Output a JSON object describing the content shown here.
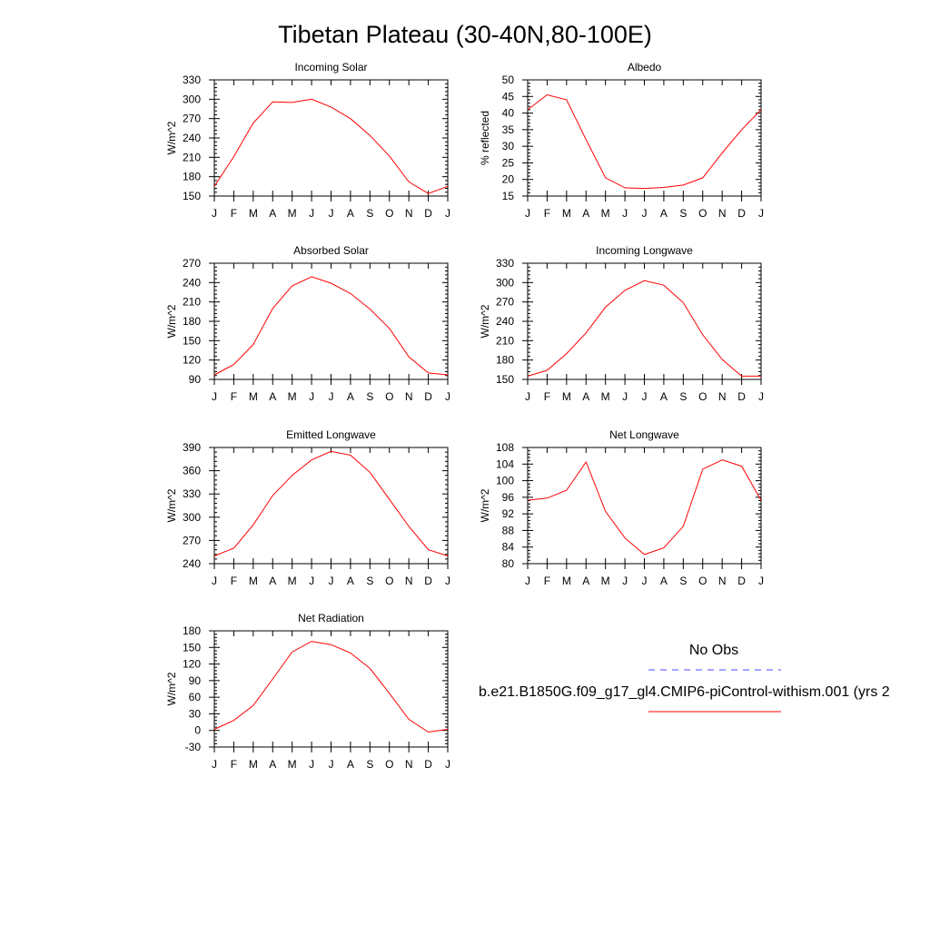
{
  "title": "Tibetan Plateau (30-40N,80-100E)",
  "months": [
    "J",
    "F",
    "M",
    "A",
    "M",
    "J",
    "J",
    "A",
    "S",
    "O",
    "N",
    "D",
    "J"
  ],
  "line_color": "#ff0000",
  "obs_color": "#4a4aff",
  "legend": {
    "obs_label": "No Obs",
    "model_label": "b.e21.B1850G.f09_g17_gl4.CMIP6-piControl-withism.001 (yrs 2"
  },
  "chart_data": [
    {
      "type": "line",
      "title": "Incoming Solar",
      "ylabel": "W/m^2",
      "ylim": [
        150,
        330
      ],
      "yticks": [
        150,
        180,
        210,
        240,
        270,
        300,
        330
      ],
      "x": [
        "J",
        "F",
        "M",
        "A",
        "M",
        "J",
        "J",
        "A",
        "S",
        "O",
        "N",
        "D",
        "J"
      ],
      "values": [
        165,
        211,
        263,
        296,
        295,
        300,
        288,
        270,
        244,
        212,
        172,
        154,
        165
      ]
    },
    {
      "type": "line",
      "title": "Albedo",
      "ylabel": "% reflected",
      "ylim": [
        15,
        50
      ],
      "yticks": [
        15,
        20,
        25,
        30,
        35,
        40,
        45,
        50
      ],
      "x": [
        "J",
        "F",
        "M",
        "A",
        "M",
        "J",
        "J",
        "A",
        "S",
        "O",
        "N",
        "D",
        "J"
      ],
      "values": [
        41,
        45.5,
        44,
        32,
        20.5,
        17.5,
        17.3,
        17.6,
        18.3,
        20.5,
        28,
        35,
        41
      ]
    },
    {
      "type": "line",
      "title": "Absorbed Solar",
      "ylabel": "W/m^2",
      "ylim": [
        90,
        270
      ],
      "yticks": [
        90,
        120,
        150,
        180,
        210,
        240,
        270
      ],
      "x": [
        "J",
        "F",
        "M",
        "A",
        "M",
        "J",
        "J",
        "A",
        "S",
        "O",
        "N",
        "D",
        "J"
      ],
      "values": [
        97,
        113,
        144,
        200,
        235,
        249,
        239,
        223,
        199,
        169,
        125,
        100,
        97
      ]
    },
    {
      "type": "line",
      "title": "Incoming Longwave",
      "ylabel": "W/m^2",
      "ylim": [
        150,
        330
      ],
      "yticks": [
        150,
        180,
        210,
        240,
        270,
        300,
        330
      ],
      "x": [
        "J",
        "F",
        "M",
        "A",
        "M",
        "J",
        "J",
        "A",
        "S",
        "O",
        "N",
        "D",
        "J"
      ],
      "values": [
        155,
        164,
        190,
        222,
        262,
        288,
        303,
        296,
        269,
        219,
        181,
        155,
        155
      ]
    },
    {
      "type": "line",
      "title": "Emitted Longwave",
      "ylabel": "W/m^2",
      "ylim": [
        240,
        390
      ],
      "yticks": [
        240,
        270,
        300,
        330,
        360,
        390
      ],
      "x": [
        "J",
        "F",
        "M",
        "A",
        "M",
        "J",
        "J",
        "A",
        "S",
        "O",
        "N",
        "D",
        "J"
      ],
      "values": [
        250,
        260,
        290,
        328,
        354,
        374,
        385,
        380,
        358,
        323,
        288,
        258,
        250
      ]
    },
    {
      "type": "line",
      "title": "Net Longwave",
      "ylabel": "W/m^2",
      "ylim": [
        80,
        108
      ],
      "yticks": [
        80,
        84,
        88,
        92,
        96,
        100,
        104,
        108
      ],
      "x": [
        "J",
        "F",
        "M",
        "A",
        "M",
        "J",
        "J",
        "A",
        "S",
        "O",
        "N",
        "D",
        "J"
      ],
      "values": [
        95.3,
        95.8,
        97.7,
        104.5,
        92.6,
        86.2,
        82.2,
        83.8,
        89,
        102.8,
        105,
        103.5,
        95.3
      ]
    },
    {
      "type": "line",
      "title": "Net Radiation",
      "ylabel": "W/m^2",
      "ylim": [
        -30,
        180
      ],
      "yticks": [
        -30,
        0,
        30,
        60,
        90,
        120,
        150,
        180
      ],
      "x": [
        "J",
        "F",
        "M",
        "A",
        "M",
        "J",
        "J",
        "A",
        "S",
        "O",
        "N",
        "D",
        "J"
      ],
      "values": [
        2,
        18,
        45,
        93,
        142,
        161,
        155,
        140,
        112,
        67,
        20,
        -3,
        2
      ]
    }
  ]
}
